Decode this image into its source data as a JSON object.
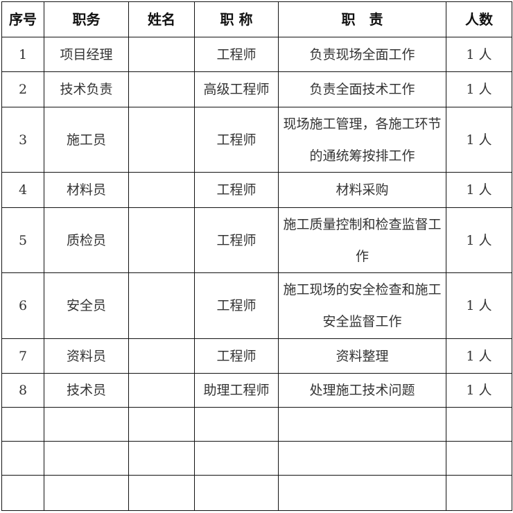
{
  "headers": [
    "序号",
    "职务",
    "姓名",
    "职 称",
    "职　责",
    "人数"
  ],
  "rows": [
    {
      "no": "1",
      "position": "项目经理",
      "name": "",
      "title": "工程师",
      "duty": "负责现场全面工作",
      "count": "1 人"
    },
    {
      "no": "2",
      "position": "技术负责",
      "name": "",
      "title": "高级工程师",
      "duty": "负责全面技术工作",
      "count": "1 人"
    },
    {
      "no": "3",
      "position": "施工员",
      "name": "",
      "title": "工程师",
      "duty": "现场施工管理，各施工环节的通统筹按排工作",
      "count": "1 人"
    },
    {
      "no": "4",
      "position": "材料员",
      "name": "",
      "title": "工程师",
      "duty": "材料采购",
      "count": "1 人"
    },
    {
      "no": "5",
      "position": "质检员",
      "name": "",
      "title": "工程师",
      "duty": "施工质量控制和检查监督工作",
      "count": "1 人"
    },
    {
      "no": "6",
      "position": "安全员",
      "name": "",
      "title": "工程师",
      "duty": "施工现场的安全检查和施工安全监督工作",
      "count": "1 人"
    },
    {
      "no": "7",
      "position": "资料员",
      "name": "",
      "title": "工程师",
      "duty": "资料整理",
      "count": "1 人"
    },
    {
      "no": "8",
      "position": "技术员",
      "name": "",
      "title": "助理工程师",
      "duty": "处理施工技术问题",
      "count": "1 人"
    },
    {
      "no": "",
      "position": "",
      "name": "",
      "title": "",
      "duty": "",
      "count": ""
    },
    {
      "no": "",
      "position": "",
      "name": "",
      "title": "",
      "duty": "",
      "count": ""
    },
    {
      "no": "",
      "position": "",
      "name": "",
      "title": "",
      "duty": "",
      "count": ""
    }
  ]
}
